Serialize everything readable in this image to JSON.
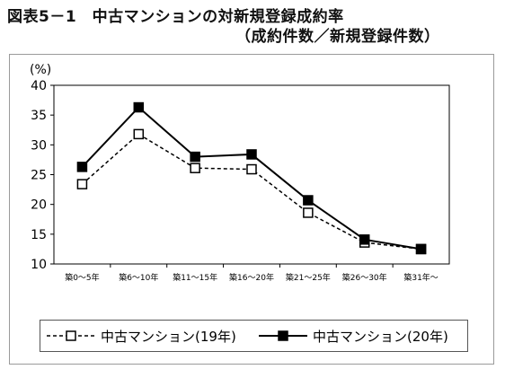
{
  "title_line1": "図表5－1　中古マンションの対新規登録成約率",
  "title_line2": "（成約件数／新規登録件数）",
  "chart_data": {
    "type": "line",
    "unit_label": "(%)",
    "categories": [
      "築0～5年",
      "築6～10年",
      "築11～15年",
      "築16～20年",
      "築21～25年",
      "築26～30年",
      "築31年～"
    ],
    "ylim": [
      10,
      40
    ],
    "yticks": [
      10,
      15,
      20,
      25,
      30,
      35,
      40
    ],
    "grid": false,
    "legend_position": "bottom",
    "series": [
      {
        "name": "中古マンション(19年)",
        "values": [
          23.4,
          31.8,
          26.1,
          25.9,
          18.6,
          13.6,
          12.5
        ],
        "style": "dashed",
        "marker": "open-square",
        "color": "#000000"
      },
      {
        "name": "中古マンション(20年)",
        "values": [
          26.3,
          36.3,
          28.0,
          28.4,
          20.7,
          14.1,
          12.5
        ],
        "style": "solid",
        "marker": "filled-square",
        "color": "#000000"
      }
    ]
  }
}
